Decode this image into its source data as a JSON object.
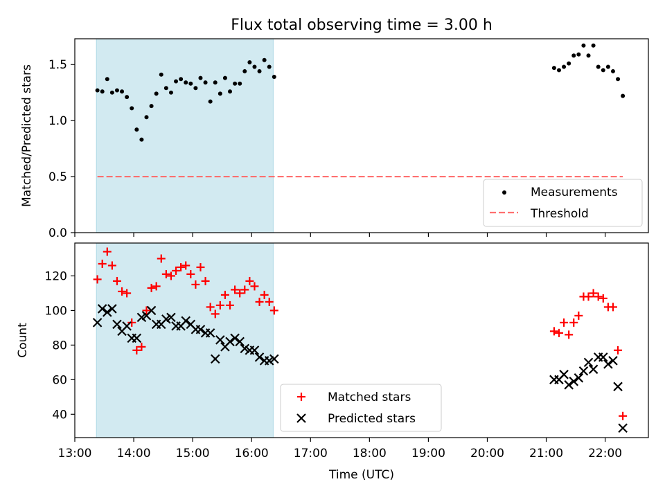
{
  "title": "Flux total observing time = 3.00 h",
  "colors": {
    "shade": "#add8e6",
    "measure": "#000000",
    "threshold": "#ff7070",
    "matched": "#ff0000",
    "predicted": "#000000"
  },
  "chart_data": [
    {
      "type": "scatter",
      "ylabel": "Matched/Predicted stars",
      "ylim": [
        0.0,
        1.73
      ],
      "yticks": [
        "0.0",
        "0.5",
        "1.0",
        "1.5"
      ],
      "xlim": [
        "13:00",
        "22:44"
      ],
      "shaded_interval": [
        "13:22",
        "16:22"
      ],
      "legend_position": "lower right",
      "series": [
        {
          "name": "Measurements",
          "marker": "dot",
          "x": [
            "13:23",
            "13:28",
            "13:33",
            "13:38",
            "13:43",
            "13:48",
            "13:53",
            "13:58",
            "14:03",
            "14:08",
            "14:13",
            "14:18",
            "14:23",
            "14:28",
            "14:33",
            "14:38",
            "14:43",
            "14:48",
            "14:53",
            "14:58",
            "15:03",
            "15:08",
            "15:13",
            "15:18",
            "15:23",
            "15:28",
            "15:33",
            "15:38",
            "15:43",
            "15:48",
            "15:53",
            "15:58",
            "16:03",
            "16:08",
            "16:13",
            "16:18",
            "16:23",
            "21:08",
            "21:13",
            "21:18",
            "21:23",
            "21:28",
            "21:33",
            "21:38",
            "21:43",
            "21:48",
            "21:53",
            "21:58",
            "22:03",
            "22:08",
            "22:13",
            "22:18"
          ],
          "y": [
            1.27,
            1.26,
            1.37,
            1.25,
            1.27,
            1.26,
            1.21,
            1.11,
            0.92,
            0.83,
            1.03,
            1.13,
            1.24,
            1.41,
            1.29,
            1.25,
            1.35,
            1.37,
            1.34,
            1.33,
            1.29,
            1.38,
            1.34,
            1.17,
            1.34,
            1.24,
            1.38,
            1.26,
            1.33,
            1.33,
            1.44,
            1.52,
            1.48,
            1.44,
            1.54,
            1.48,
            1.39,
            1.47,
            1.45,
            1.48,
            1.51,
            1.58,
            1.59,
            1.67,
            1.58,
            1.67,
            1.48,
            1.45,
            1.48,
            1.44,
            1.37,
            1.22
          ]
        },
        {
          "name": "Threshold",
          "style": "dashed",
          "x": [
            "13:23",
            "22:18"
          ],
          "y": [
            0.5,
            0.5
          ]
        }
      ]
    },
    {
      "type": "scatter",
      "xlabel": "Time (UTC)",
      "ylabel": "Count",
      "ylim": [
        26.5,
        139
      ],
      "yticks": [
        "40",
        "60",
        "80",
        "100",
        "120"
      ],
      "xlim": [
        "13:00",
        "22:44"
      ],
      "xticks": [
        "13:00",
        "14:00",
        "15:00",
        "16:00",
        "17:00",
        "18:00",
        "19:00",
        "20:00",
        "21:00",
        "22:00"
      ],
      "shaded_interval": [
        "13:22",
        "16:22"
      ],
      "legend_position": "lower center",
      "series": [
        {
          "name": "Matched stars",
          "marker": "plus",
          "x": [
            "13:23",
            "13:28",
            "13:33",
            "13:38",
            "13:43",
            "13:48",
            "13:53",
            "13:58",
            "14:03",
            "14:08",
            "14:13",
            "14:18",
            "14:23",
            "14:28",
            "14:33",
            "14:38",
            "14:43",
            "14:48",
            "14:53",
            "14:58",
            "15:03",
            "15:08",
            "15:13",
            "15:18",
            "15:23",
            "15:28",
            "15:33",
            "15:38",
            "15:43",
            "15:48",
            "15:53",
            "15:58",
            "16:03",
            "16:08",
            "16:13",
            "16:18",
            "16:23",
            "21:08",
            "21:13",
            "21:18",
            "21:23",
            "21:28",
            "21:33",
            "21:38",
            "21:43",
            "21:48",
            "21:53",
            "21:58",
            "22:03",
            "22:08",
            "22:13",
            "22:18"
          ],
          "y": [
            118,
            127,
            134,
            126,
            117,
            111,
            110,
            93,
            77,
            79,
            100,
            113,
            114,
            130,
            121,
            120,
            123,
            125,
            126,
            121,
            115,
            125,
            117,
            102,
            98,
            103,
            109,
            103,
            112,
            110,
            112,
            117,
            114,
            105,
            109,
            105,
            100,
            88,
            87,
            93,
            86,
            93,
            97,
            108,
            108,
            110,
            108,
            107,
            102,
            102,
            77,
            39
          ]
        },
        {
          "name": "Predicted stars",
          "marker": "x",
          "x": [
            "13:23",
            "13:28",
            "13:33",
            "13:38",
            "13:43",
            "13:48",
            "13:53",
            "13:58",
            "14:03",
            "14:08",
            "14:13",
            "14:18",
            "14:23",
            "14:28",
            "14:33",
            "14:38",
            "14:43",
            "14:48",
            "14:53",
            "14:58",
            "15:03",
            "15:08",
            "15:13",
            "15:18",
            "15:23",
            "15:28",
            "15:33",
            "15:38",
            "15:43",
            "15:48",
            "15:53",
            "15:58",
            "16:03",
            "16:08",
            "16:13",
            "16:18",
            "16:23",
            "21:08",
            "21:13",
            "21:18",
            "21:23",
            "21:28",
            "21:33",
            "21:38",
            "21:43",
            "21:48",
            "21:53",
            "21:58",
            "22:03",
            "22:08",
            "22:13",
            "22:18"
          ],
          "y": [
            93,
            101,
            99,
            101,
            92,
            88,
            91,
            84,
            84,
            96,
            97,
            100,
            92,
            92,
            95,
            96,
            91,
            91,
            94,
            92,
            89,
            89,
            87,
            87,
            72,
            83,
            79,
            82,
            84,
            82,
            78,
            77,
            77,
            73,
            71,
            71,
            72,
            60,
            60,
            63,
            57,
            59,
            61,
            65,
            70,
            66,
            73,
            73,
            69,
            71,
            56,
            32
          ]
        }
      ]
    }
  ]
}
